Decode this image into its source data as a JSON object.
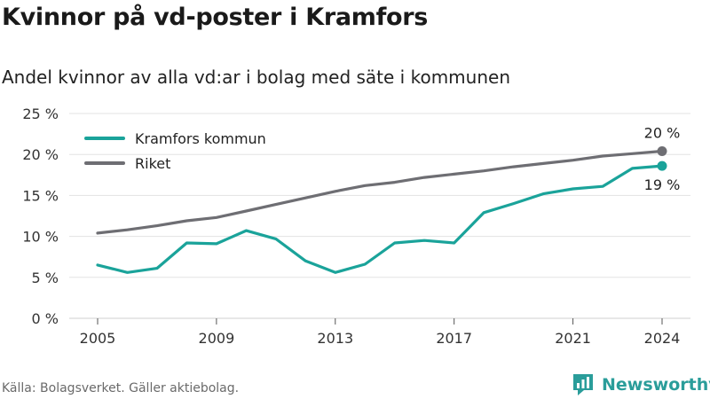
{
  "header": {
    "title": "Kvinnor på vd-poster i Kramfors",
    "subtitle": "Andel kvinnor av alla vd:ar i bolag med säte i kommunen"
  },
  "footer": {
    "source": "Källa: Bolagsverket. Gäller aktiebolag.",
    "brand": "Newsworthy"
  },
  "colors": {
    "kramfors": "#1aa39a",
    "riket": "#6e6e73",
    "grid": "#e3e3e3",
    "brand": "#2a9d9a"
  },
  "chart_data": {
    "type": "line",
    "title": "Kvinnor på vd-poster i Kramfors",
    "subtitle": "Andel kvinnor av alla vd:ar i bolag med säte i kommunen",
    "xlabel": "",
    "ylabel": "",
    "x": [
      2005,
      2006,
      2007,
      2008,
      2009,
      2010,
      2011,
      2012,
      2013,
      2014,
      2015,
      2016,
      2017,
      2018,
      2019,
      2020,
      2021,
      2022,
      2023,
      2024
    ],
    "series": [
      {
        "name": "Kramfors kommun",
        "color": "#1aa39a",
        "values": [
          6.5,
          5.6,
          6.1,
          9.2,
          9.1,
          10.7,
          9.7,
          7.0,
          5.6,
          6.6,
          9.2,
          9.5,
          9.2,
          12.9,
          14.0,
          15.2,
          15.8,
          16.1,
          18.3,
          18.6
        ],
        "end_label": "19 %"
      },
      {
        "name": "Riket",
        "color": "#6e6e73",
        "values": [
          10.4,
          10.8,
          11.3,
          11.9,
          12.3,
          13.1,
          13.9,
          14.7,
          15.5,
          16.2,
          16.6,
          17.2,
          17.6,
          18.0,
          18.5,
          18.9,
          19.3,
          19.8,
          20.1,
          20.4
        ],
        "end_label": "20 %"
      }
    ],
    "xticks": [
      2005,
      2009,
      2013,
      2017,
      2021,
      2024
    ],
    "yticks": [
      0,
      5,
      10,
      15,
      20,
      25
    ],
    "ytick_labels": [
      "0 %",
      "5 %",
      "10 %",
      "15 %",
      "20 %",
      "25 %"
    ],
    "ylim": [
      0,
      25
    ],
    "xlim": [
      2005,
      2024
    ],
    "grid": true,
    "legend_placement": "top-left"
  }
}
